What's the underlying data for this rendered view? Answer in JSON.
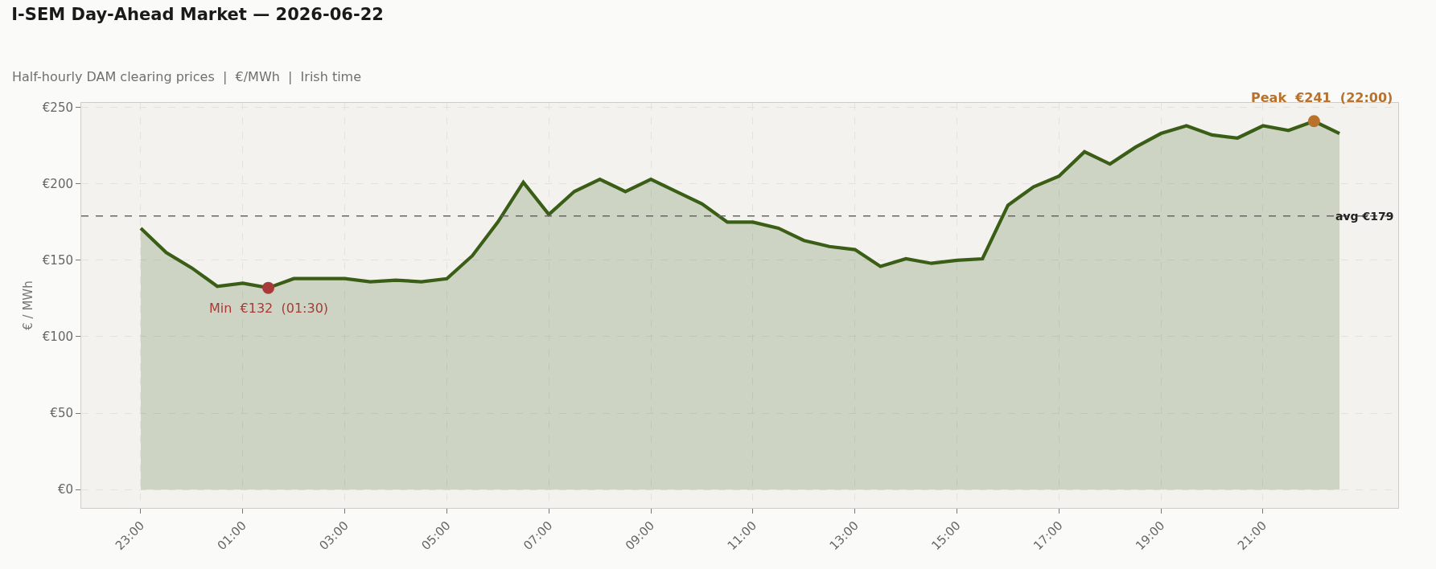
{
  "chart_data": {
    "type": "area",
    "title": "I-SEM Day-Ahead Market — 2026-06-22",
    "subtitle": "Half-hourly DAM clearing prices  |  €/MWh  |  Irish time",
    "ylabel": "€ / MWh",
    "x": [
      "2026-06-21T23:00",
      "2026-06-21T23:30",
      "2026-06-22T00:00",
      "2026-06-22T00:30",
      "2026-06-22T01:00",
      "2026-06-22T01:30",
      "2026-06-22T02:00",
      "2026-06-22T02:30",
      "2026-06-22T03:00",
      "2026-06-22T03:30",
      "2026-06-22T04:00",
      "2026-06-22T04:30",
      "2026-06-22T05:00",
      "2026-06-22T05:30",
      "2026-06-22T06:00",
      "2026-06-22T06:30",
      "2026-06-22T07:00",
      "2026-06-22T07:30",
      "2026-06-22T08:00",
      "2026-06-22T08:30",
      "2026-06-22T09:00",
      "2026-06-22T09:30",
      "2026-06-22T10:00",
      "2026-06-22T10:30",
      "2026-06-22T11:00",
      "2026-06-22T11:30",
      "2026-06-22T12:00",
      "2026-06-22T12:30",
      "2026-06-22T13:00",
      "2026-06-22T13:30",
      "2026-06-22T14:00",
      "2026-06-22T14:30",
      "2026-06-22T15:00",
      "2026-06-22T15:30",
      "2026-06-22T16:00",
      "2026-06-22T16:30",
      "2026-06-22T17:00",
      "2026-06-22T17:30",
      "2026-06-22T18:00",
      "2026-06-22T18:30",
      "2026-06-22T19:00",
      "2026-06-22T19:30",
      "2026-06-22T20:00",
      "2026-06-22T20:30",
      "2026-06-22T21:00",
      "2026-06-22T21:30",
      "2026-06-22T22:00",
      "2026-06-22T22:30"
    ],
    "series": [
      {
        "color": "#3b5e17",
        "values": [
          171,
          155,
          145,
          133,
          135,
          132,
          138,
          138,
          138,
          136,
          137,
          136,
          138,
          153,
          175,
          201,
          180,
          195,
          203,
          195,
          203,
          195,
          187,
          175,
          175,
          171,
          163,
          159,
          157,
          146,
          151,
          148,
          150,
          151,
          186,
          198,
          205,
          221,
          213,
          224,
          233,
          238,
          232,
          230,
          238,
          235,
          241,
          233
        ]
      },
      {
        "type": "scatter",
        "x": [
          "2026-06-22T01:30",
          "2026-06-22T22:00"
        ],
        "values": [
          132,
          241
        ],
        "colors": [
          "#a83a3a",
          "#b8722c"
        ],
        "marker": "circle"
      }
    ],
    "annotations": [
      {
        "text": "Min  €132  (01:30)",
        "x": "2026-06-22T01:30",
        "y": 132
      },
      {
        "text": "Peak  €241  (22:00)",
        "x": "2026-06-22T22:00",
        "y": 241
      }
    ],
    "ref_lines": [
      {
        "axis": "y",
        "value": 179,
        "label": "avg €179",
        "color": "#666666",
        "line_style": "dashed"
      }
    ],
    "xlim": [
      "2026-06-21T21:50",
      "2026-06-22T23:39"
    ],
    "xticks": [
      {
        "value": "2026-06-21T23:00",
        "label": "23:00"
      },
      {
        "value": "2026-06-22T01:00",
        "label": "01:00"
      },
      {
        "value": "2026-06-22T03:00",
        "label": "03:00"
      },
      {
        "value": "2026-06-22T05:00",
        "label": "05:00"
      },
      {
        "value": "2026-06-22T07:00",
        "label": "07:00"
      },
      {
        "value": "2026-06-22T09:00",
        "label": "09:00"
      },
      {
        "value": "2026-06-22T11:00",
        "label": "11:00"
      },
      {
        "value": "2026-06-22T13:00",
        "label": "13:00"
      },
      {
        "value": "2026-06-22T15:00",
        "label": "15:00"
      },
      {
        "value": "2026-06-22T17:00",
        "label": "17:00"
      },
      {
        "value": "2026-06-22T19:00",
        "label": "19:00"
      },
      {
        "value": "2026-06-22T21:00",
        "label": "21:00"
      }
    ],
    "ylim": [
      -12,
      253
    ],
    "yticks": [
      {
        "value": 0,
        "label": "€0"
      },
      {
        "value": 50,
        "label": "€50"
      },
      {
        "value": 100,
        "label": "€100"
      },
      {
        "value": 150,
        "label": "€150"
      },
      {
        "value": 200,
        "label": "€200"
      },
      {
        "value": 250,
        "label": "€250"
      }
    ],
    "grid": true,
    "marker": "none",
    "line_style": "solid"
  }
}
